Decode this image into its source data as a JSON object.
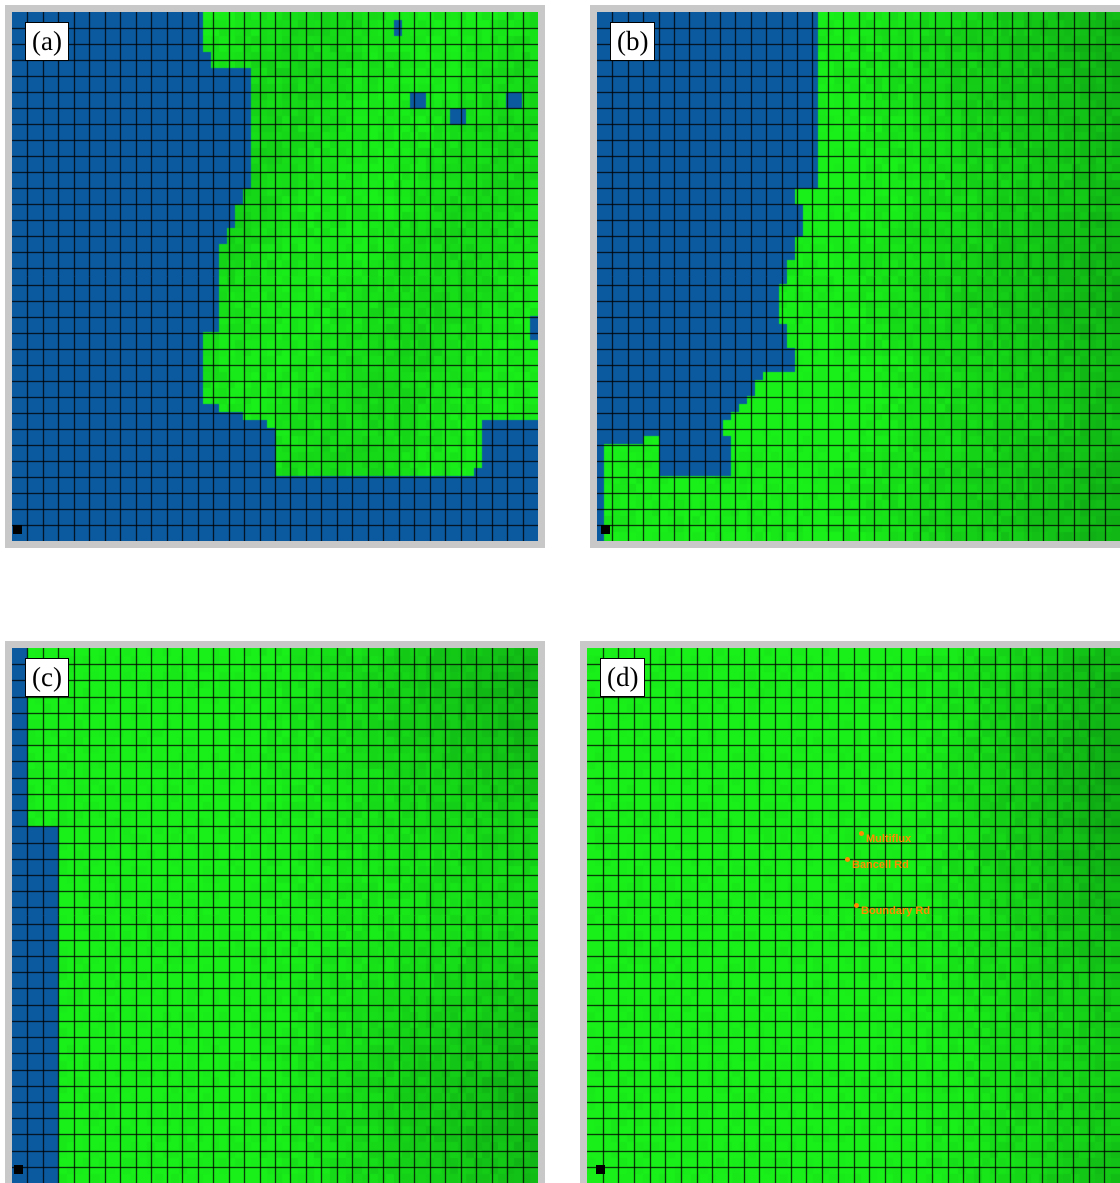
{
  "panels": [
    {
      "id": "a",
      "label": "(a)"
    },
    {
      "id": "b",
      "label": "(b)"
    },
    {
      "id": "c",
      "label": "(c)"
    },
    {
      "id": "d",
      "label": "(d)"
    }
  ],
  "stations": [
    {
      "name": "Multiflux"
    },
    {
      "name": "Bancell Rd"
    },
    {
      "name": "Boundary Rd"
    }
  ],
  "colors": {
    "water": "#0b5aa0",
    "land": "#19f019",
    "land_dark": "#0a8a12",
    "grid_line": "#000000",
    "frame": "#c8c8c8",
    "station": "#ff8c00"
  },
  "grid": {
    "columns": 34,
    "rows": 33
  }
}
